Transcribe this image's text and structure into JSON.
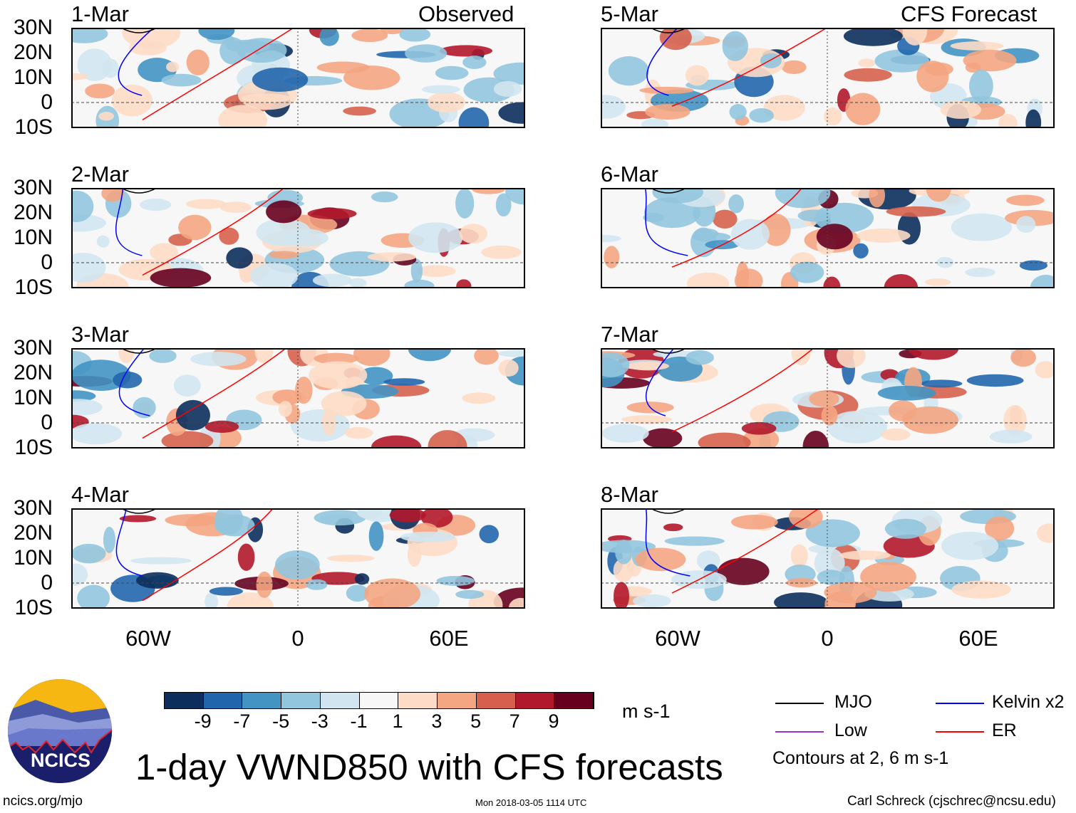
{
  "left_header": "Observed",
  "right_header": "CFS Forecast",
  "panels": [
    {
      "date": "1-Mar",
      "column": "observed"
    },
    {
      "date": "2-Mar",
      "column": "observed"
    },
    {
      "date": "3-Mar",
      "column": "observed"
    },
    {
      "date": "4-Mar",
      "column": "observed"
    },
    {
      "date": "5-Mar",
      "column": "forecast"
    },
    {
      "date": "6-Mar",
      "column": "forecast"
    },
    {
      "date": "7-Mar",
      "column": "forecast"
    },
    {
      "date": "8-Mar",
      "column": "forecast"
    }
  ],
  "lat_labels": [
    "30N",
    "20N",
    "10N",
    "0",
    "10S"
  ],
  "lon_labels": [
    "60W",
    "0",
    "60E"
  ],
  "colorbar": {
    "labels": [
      "-9",
      "-7",
      "-5",
      "-3",
      "-1",
      "1",
      "3",
      "5",
      "7",
      "9"
    ],
    "colors": [
      "#0b2e5c",
      "#2166ac",
      "#4393c3",
      "#92c5de",
      "#d1e5f0",
      "#f7f7f7",
      "#fddbc7",
      "#f4a582",
      "#d6604d",
      "#b2182b",
      "#67001f"
    ],
    "units": "m s-1"
  },
  "legend": {
    "items": [
      {
        "label": "MJO",
        "color": "#000000"
      },
      {
        "label": "Kelvin x2",
        "color": "#0000ff"
      },
      {
        "label": "Low",
        "color": "#9932cc"
      },
      {
        "label": "ER",
        "color": "#ff0000"
      }
    ],
    "contours": "Contours at 2, 6 m s-1"
  },
  "title": "1-day VWND850 with CFS forecasts",
  "logo_text": "NCICS",
  "footer": {
    "url": "ncics.org/mjo",
    "timestamp": "Mon 2018-03-05 1114 UTC",
    "credit": "Carl Schreck (cjschrec@ncsu.edu)"
  }
}
